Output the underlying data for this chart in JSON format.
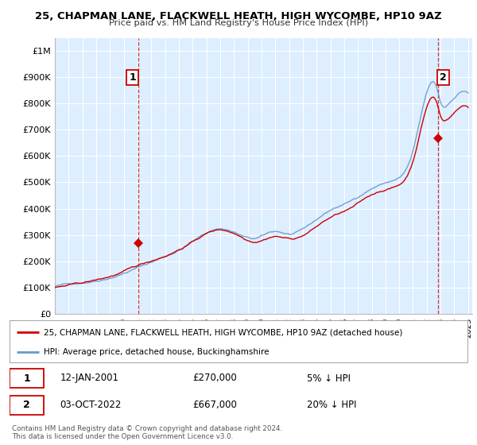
{
  "title": "25, CHAPMAN LANE, FLACKWELL HEATH, HIGH WYCOMBE, HP10 9AZ",
  "subtitle": "Price paid vs. HM Land Registry's House Price Index (HPI)",
  "background_color": "#ffffff",
  "chart_bg_color": "#ddeeff",
  "grid_color": "#ffffff",
  "hpi_color": "#6699cc",
  "price_color": "#cc0000",
  "annotation_color": "#cc0000",
  "ylim": [
    0,
    1050000
  ],
  "yticks": [
    0,
    100000,
    200000,
    300000,
    400000,
    500000,
    600000,
    700000,
    800000,
    900000,
    1000000
  ],
  "ytick_labels": [
    "£0",
    "£100K",
    "£200K",
    "£300K",
    "£400K",
    "£500K",
    "£600K",
    "£700K",
    "£800K",
    "£900K",
    "£1M"
  ],
  "sale1_year_idx": 72,
  "sale1_price": 270000,
  "sale1_label": "1",
  "sale2_year_idx": 327,
  "sale2_price": 667000,
  "sale2_label": "2",
  "legend_line1": "25, CHAPMAN LANE, FLACKWELL HEATH, HIGH WYCOMBE, HP10 9AZ (detached house)",
  "legend_line2": "HPI: Average price, detached house, Buckinghamshire",
  "table_row1_num": "1",
  "table_row1_date": "12-JAN-2001",
  "table_row1_price": "£270,000",
  "table_row1_hpi": "5% ↓ HPI",
  "table_row2_num": "2",
  "table_row2_date": "03-OCT-2022",
  "table_row2_price": "£667,000",
  "table_row2_hpi": "20% ↓ HPI",
  "footer": "Contains HM Land Registry data © Crown copyright and database right 2024.\nThis data is licensed under the Open Government Licence v3.0."
}
